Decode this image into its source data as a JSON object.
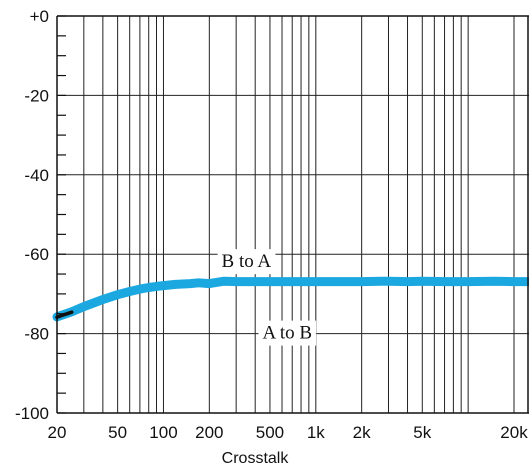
{
  "chart_data": {
    "type": "line",
    "title": "",
    "xlabel": "Crosstalk",
    "ylabel": "",
    "x_scale": "log",
    "xlim": [
      20,
      25000
    ],
    "ylim": [
      -100,
      0
    ],
    "grid": true,
    "x_major_ticks": [
      20,
      50,
      100,
      200,
      500,
      1000,
      2000,
      5000,
      20000
    ],
    "x_tick_labels": [
      "20",
      "50",
      "100",
      "200",
      "500",
      "1k",
      "2k",
      "5k",
      "20k"
    ],
    "x_grid_lines": [
      20,
      30,
      40,
      50,
      60,
      70,
      80,
      90,
      100,
      200,
      300,
      400,
      500,
      600,
      700,
      800,
      900,
      1000,
      2000,
      3000,
      4000,
      5000,
      6000,
      7000,
      8000,
      9000,
      10000,
      20000
    ],
    "y_major_ticks": [
      0,
      -20,
      -40,
      -60,
      -80,
      -100
    ],
    "y_tick_labels": [
      "+0",
      "-20",
      "-40",
      "-60",
      "-80",
      "-100"
    ],
    "y_minor_step": 5,
    "annotations": [
      {
        "text": "B to A",
        "x": 350,
        "y": -61.5
      },
      {
        "text": "A to B",
        "x": 650,
        "y": -79.5
      }
    ],
    "series": [
      {
        "color": "#1BA8E0",
        "x": [
          20,
          25,
          30,
          40,
          50,
          60,
          70,
          80,
          90,
          100,
          120,
          150,
          170,
          200,
          250,
          300,
          400,
          500,
          700,
          1000,
          1500,
          2000,
          3000,
          4000,
          5000,
          7000,
          10000,
          15000,
          20000,
          25000
        ],
        "y": [
          -75.8,
          -74.5,
          -73.2,
          -71.4,
          -70.2,
          -69.4,
          -68.8,
          -68.4,
          -68.1,
          -67.9,
          -67.6,
          -67.4,
          -67.2,
          -67.4,
          -66.8,
          -66.9,
          -66.9,
          -66.9,
          -66.9,
          -66.9,
          -66.9,
          -66.9,
          -66.8,
          -66.9,
          -66.8,
          -66.9,
          -66.9,
          -66.8,
          -66.9,
          -66.9
        ]
      },
      {
        "color": "#111111",
        "x": [
          20,
          22,
          25
        ],
        "y": [
          -75.9,
          -75.3,
          -74.6
        ]
      }
    ]
  }
}
